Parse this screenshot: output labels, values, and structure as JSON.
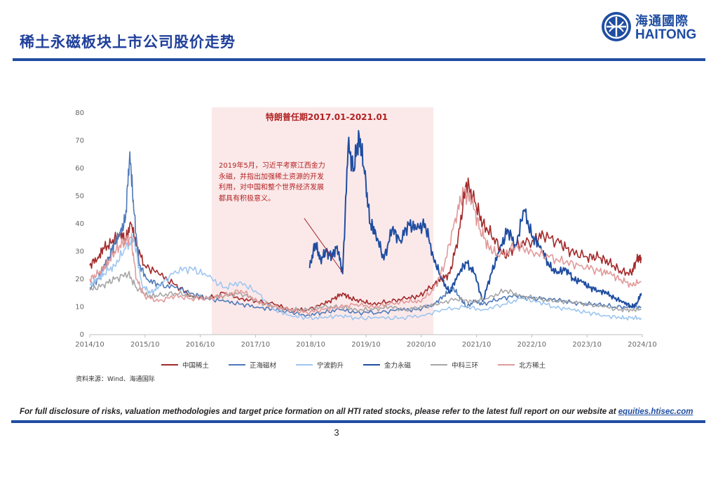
{
  "header": {
    "title": "稀土永磁板块上市公司股价走势",
    "logo_cn": "海通國際",
    "logo_en": "HAITONG"
  },
  "colors": {
    "brand": "#1f4da1",
    "period_shade": "#fbe9ea",
    "annotation": "#b22222"
  },
  "chart_data": {
    "type": "line",
    "xlabel": "",
    "ylabel": "",
    "ylim": [
      0,
      80
    ],
    "yticks": [
      0,
      10,
      20,
      30,
      40,
      50,
      60,
      70,
      80
    ],
    "xticks": [
      "2014/10",
      "2015/10",
      "2016/10",
      "2017/10",
      "2018/10",
      "2019/10",
      "2020/10",
      "2021/10",
      "2022/10",
      "2023/10",
      "2024/10"
    ],
    "xrange": [
      2014.75,
      2024.8
    ],
    "grid": false,
    "legend_position": "bottom",
    "shaded_period": {
      "start": 2016.97,
      "end": 2021.0,
      "label": "特朗普任期2017.01-2021.01"
    },
    "annotation": {
      "text": "2019年5月，习近平考察江西金力永磁，并指出加强稀土资源的开发利用，对中国和整个世界经济发展都具有积极意义。",
      "arrow_from": [
        2018.65,
        42
      ],
      "arrow_to": [
        2019.35,
        22.5
      ]
    },
    "series": [
      {
        "name": "中国稀土",
        "color": "#a3292a",
        "x": [
          2014.75,
          2014.9,
          2015.0,
          2015.15,
          2015.3,
          2015.4,
          2015.5,
          2015.6,
          2015.75,
          2016.0,
          2016.3,
          2016.6,
          2016.9,
          2017.2,
          2017.5,
          2017.8,
          2018.1,
          2018.4,
          2018.7,
          2019.0,
          2019.2,
          2019.35,
          2019.5,
          2019.7,
          2019.9,
          2020.2,
          2020.5,
          2020.75,
          2021.0,
          2021.15,
          2021.3,
          2021.45,
          2021.6,
          2021.75,
          2021.9,
          2022.1,
          2022.3,
          2022.5,
          2022.8,
          2023.0,
          2023.3,
          2023.5,
          2023.8,
          2024.0,
          2024.2,
          2024.4,
          2024.6,
          2024.7,
          2024.78
        ],
        "y": [
          25,
          28,
          31,
          33,
          37,
          34,
          40,
          32,
          25,
          22,
          18,
          14,
          13,
          15,
          13,
          12,
          11,
          9,
          9,
          11,
          13,
          15,
          13,
          12,
          11,
          12,
          13,
          14,
          18,
          20,
          22,
          35,
          55,
          48,
          40,
          35,
          28,
          32,
          34,
          36,
          33,
          30,
          28,
          28,
          26,
          23,
          22,
          27,
          28
        ]
      },
      {
        "name": "正海磁材",
        "color": "#4e79b8",
        "x": [
          2014.75,
          2014.9,
          2015.0,
          2015.1,
          2015.2,
          2015.3,
          2015.4,
          2015.48,
          2015.55,
          2015.65,
          2015.8,
          2016.0,
          2016.3,
          2016.6,
          2016.9,
          2017.2,
          2017.5,
          2017.8,
          2018.1,
          2018.4,
          2018.7,
          2019.0,
          2019.3,
          2019.6,
          2020.0,
          2020.4,
          2020.7,
          2021.0,
          2021.2,
          2021.35,
          2021.5,
          2021.6,
          2021.75,
          2021.9,
          2022.2,
          2022.5,
          2022.8,
          2023.1,
          2023.4,
          2023.7,
          2024.0,
          2024.3,
          2024.6,
          2024.78
        ],
        "y": [
          17,
          20,
          24,
          28,
          33,
          36,
          42,
          66,
          45,
          25,
          20,
          18,
          17,
          15,
          13,
          12,
          11,
          10,
          9,
          8,
          7,
          8,
          9,
          8,
          8,
          9,
          9,
          11,
          14,
          17,
          13,
          10,
          12,
          11,
          13,
          14,
          13,
          13,
          12,
          11,
          11,
          10,
          10,
          10
        ]
      },
      {
        "name": "宁波韵升",
        "color": "#9ec6f0",
        "x": [
          2014.75,
          2014.9,
          2015.0,
          2015.2,
          2015.4,
          2015.55,
          2015.7,
          2015.85,
          2016.0,
          2016.3,
          2016.6,
          2016.9,
          2017.2,
          2017.5,
          2017.8,
          2018.1,
          2018.4,
          2018.7,
          2019.0,
          2019.3,
          2019.6,
          2020.0,
          2020.4,
          2020.8,
          2021.2,
          2021.6,
          2021.9,
          2022.3,
          2022.6,
          2022.9,
          2023.2,
          2023.5,
          2023.8,
          2024.1,
          2024.4,
          2024.6,
          2024.78
        ],
        "y": [
          18,
          20,
          22,
          25,
          31,
          35,
          18,
          15,
          17,
          23,
          24,
          21,
          17,
          19,
          15,
          9,
          7,
          6,
          6,
          7,
          6,
          6,
          6,
          7,
          9,
          10,
          9,
          11,
          13,
          12,
          10,
          9,
          8,
          7,
          6,
          6,
          6
        ]
      },
      {
        "name": "金力永磁",
        "color": "#1f4da1",
        "x": [
          2018.75,
          2018.85,
          2018.95,
          2019.05,
          2019.15,
          2019.25,
          2019.35,
          2019.45,
          2019.55,
          2019.65,
          2019.75,
          2019.85,
          2019.95,
          2020.1,
          2020.25,
          2020.4,
          2020.55,
          2020.7,
          2020.85,
          2021.0,
          2021.15,
          2021.3,
          2021.45,
          2021.6,
          2021.75,
          2021.9,
          2022.05,
          2022.2,
          2022.35,
          2022.5,
          2022.65,
          2022.8,
          2022.95,
          2023.1,
          2023.25,
          2023.4,
          2023.55,
          2023.7,
          2023.85,
          2024.0,
          2024.15,
          2024.3,
          2024.45,
          2024.6,
          2024.7,
          2024.78
        ],
        "y": [
          24,
          33,
          27,
          30,
          28,
          32,
          22,
          68,
          60,
          72,
          58,
          40,
          37,
          27,
          38,
          34,
          40,
          38,
          40,
          28,
          20,
          15,
          22,
          26,
          22,
          12,
          22,
          30,
          38,
          32,
          45,
          35,
          32,
          25,
          22,
          24,
          20,
          19,
          17,
          16,
          15,
          13,
          12,
          10,
          11,
          15
        ]
      },
      {
        "name": "中科三环",
        "color": "#a6a6a6",
        "x": [
          2014.75,
          2015.0,
          2015.2,
          2015.45,
          2015.6,
          2015.8,
          2016.0,
          2016.3,
          2016.6,
          2016.9,
          2017.2,
          2017.5,
          2017.8,
          2018.1,
          2018.4,
          2018.7,
          2019.0,
          2019.3,
          2019.6,
          2019.9,
          2020.2,
          2020.5,
          2020.8,
          2021.1,
          2021.4,
          2021.7,
          2022.0,
          2022.3,
          2022.6,
          2022.9,
          2023.2,
          2023.5,
          2023.8,
          2024.1,
          2024.4,
          2024.6,
          2024.78
        ],
        "y": [
          16,
          18,
          20,
          22,
          17,
          14,
          14,
          15,
          14,
          13,
          14,
          15,
          12,
          10,
          9,
          9,
          10,
          10,
          9,
          9,
          10,
          9,
          10,
          11,
          13,
          12,
          13,
          16,
          14,
          13,
          12,
          12,
          11,
          10,
          9,
          9,
          9
        ]
      },
      {
        "name": "北方稀土",
        "color": "#e09a9a",
        "x": [
          2014.75,
          2014.9,
          2015.05,
          2015.2,
          2015.35,
          2015.5,
          2015.6,
          2015.75,
          2016.0,
          2016.3,
          2016.6,
          2016.9,
          2017.2,
          2017.5,
          2017.8,
          2018.1,
          2018.4,
          2018.7,
          2019.0,
          2019.3,
          2019.6,
          2019.9,
          2020.2,
          2020.5,
          2020.75,
          2021.0,
          2021.2,
          2021.4,
          2021.55,
          2021.7,
          2021.85,
          2022.0,
          2022.2,
          2022.5,
          2022.8,
          2023.1,
          2023.4,
          2023.7,
          2024.0,
          2024.2,
          2024.4,
          2024.6,
          2024.78
        ],
        "y": [
          20,
          22,
          25,
          30,
          33,
          35,
          20,
          14,
          12,
          14,
          13,
          13,
          14,
          16,
          12,
          10,
          9,
          8,
          9,
          10,
          11,
          10,
          11,
          12,
          12,
          16,
          25,
          42,
          52,
          48,
          38,
          32,
          28,
          32,
          30,
          28,
          26,
          25,
          23,
          22,
          20,
          18,
          19
        ]
      }
    ]
  },
  "source": "资料来源：Wind、海通国际",
  "footer": {
    "disclaimer": "For full disclosure of risks, valuation methodologies and target price formation on all HTI rated stocks, please refer to the latest full report on our website at",
    "link": "equities.htisec.com",
    "page": "3"
  }
}
